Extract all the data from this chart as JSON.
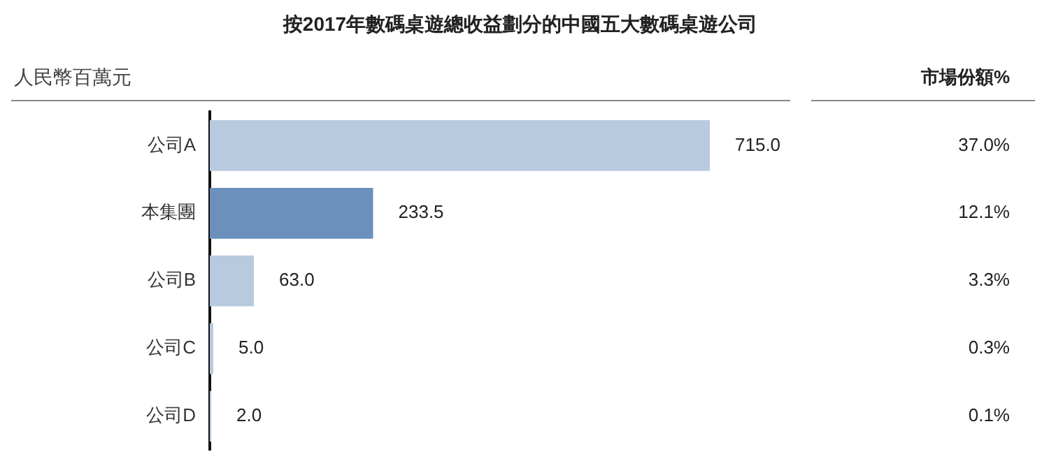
{
  "chart_data": {
    "type": "bar",
    "orientation": "horizontal",
    "title": "按2017年數碼桌遊總收益劃分的中國五大數碼桌遊公司",
    "xlabel": "人民幣百萬元",
    "categories": [
      "公司A",
      "本集團",
      "公司B",
      "公司C",
      "公司D"
    ],
    "values": [
      715.0,
      233.5,
      63.0,
      5.0,
      2.0
    ],
    "colors": [
      "#b8cadf",
      "#6b90bb",
      "#b8cadf",
      "#b8cadf",
      "#b8cadf"
    ],
    "value_labels": [
      "715.0",
      "233.5",
      "63.0",
      "5.0",
      "2.0"
    ],
    "grid": false,
    "legend": false,
    "tick_labels": "y",
    "annotations": [
      "市場份額%",
      "37.0%",
      "12.1%",
      "3.3%",
      "0.3%",
      "0.1%"
    ]
  }
}
